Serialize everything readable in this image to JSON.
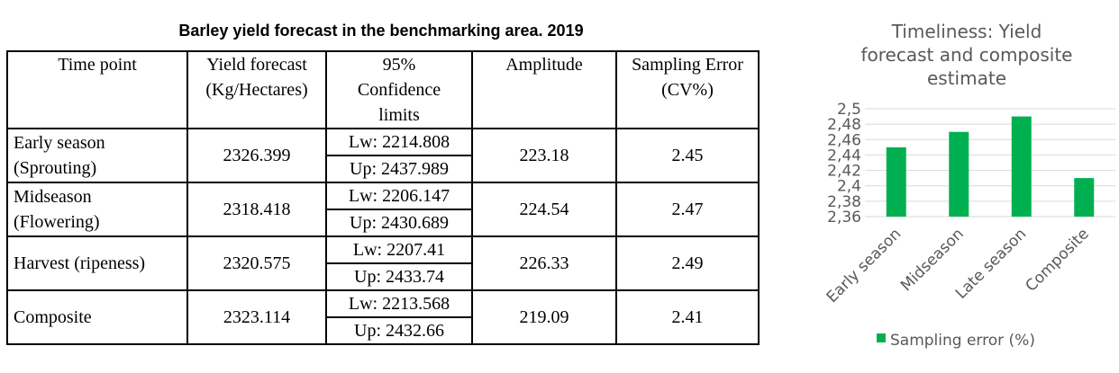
{
  "table": {
    "title": "Barley yield forecast in the benchmarking area. 2019",
    "headers": {
      "time_point": "Time point",
      "yield_l1": "Yield forecast",
      "yield_l2": "(Kg/Hectares)",
      "conf_l1": "95%",
      "conf_l2": "Confidence",
      "conf_l3": "limits",
      "amplitude": "Amplitude",
      "err_l1": "Sampling Error",
      "err_l2": "(CV%)"
    },
    "rows": [
      {
        "tp_l1": "Early season",
        "tp_l2": "(Sprouting)",
        "yield": "2326.399",
        "lw": "Lw: 2214.808",
        "up": "Up: 2437.989",
        "amplitude": "223.18",
        "error": "2.45"
      },
      {
        "tp_l1": "Midseason",
        "tp_l2": "(Flowering)",
        "yield": "2318.418",
        "lw": "Lw: 2206.147",
        "up": "Up: 2430.689",
        "amplitude": "224.54",
        "error": "2.47"
      },
      {
        "tp_l1": "Harvest (ripeness)",
        "tp_l2": "",
        "yield": "2320.575",
        "lw": "Lw: 2207.41",
        "up": "Up: 2433.74",
        "amplitude": "226.33",
        "error": "2.49"
      },
      {
        "tp_l1": "Composite",
        "tp_l2": "",
        "yield": "2323.114",
        "lw": "Lw: 2213.568",
        "up": "Up: 2432.66",
        "amplitude": "219.09",
        "error": "2.41"
      }
    ]
  },
  "chart_data": {
    "type": "bar",
    "title_lines": [
      "Timeliness: Yield",
      "forecast and composite",
      "estimate"
    ],
    "categories": [
      "Early season",
      "Midseason",
      "Late season",
      "Composite"
    ],
    "series": [
      {
        "name": "Sampling error (%)",
        "values": [
          2.45,
          2.47,
          2.49,
          2.41
        ],
        "color": "#00b050"
      }
    ],
    "ylim": [
      2.36,
      2.5
    ],
    "yticks": [
      "2,5",
      "2,48",
      "2,46",
      "2,44",
      "2,42",
      "2,4",
      "2,38",
      "2,36"
    ],
    "grid": true,
    "legend": "bottom",
    "grid_color": "#d9d9d9",
    "text_color": "#595959"
  }
}
